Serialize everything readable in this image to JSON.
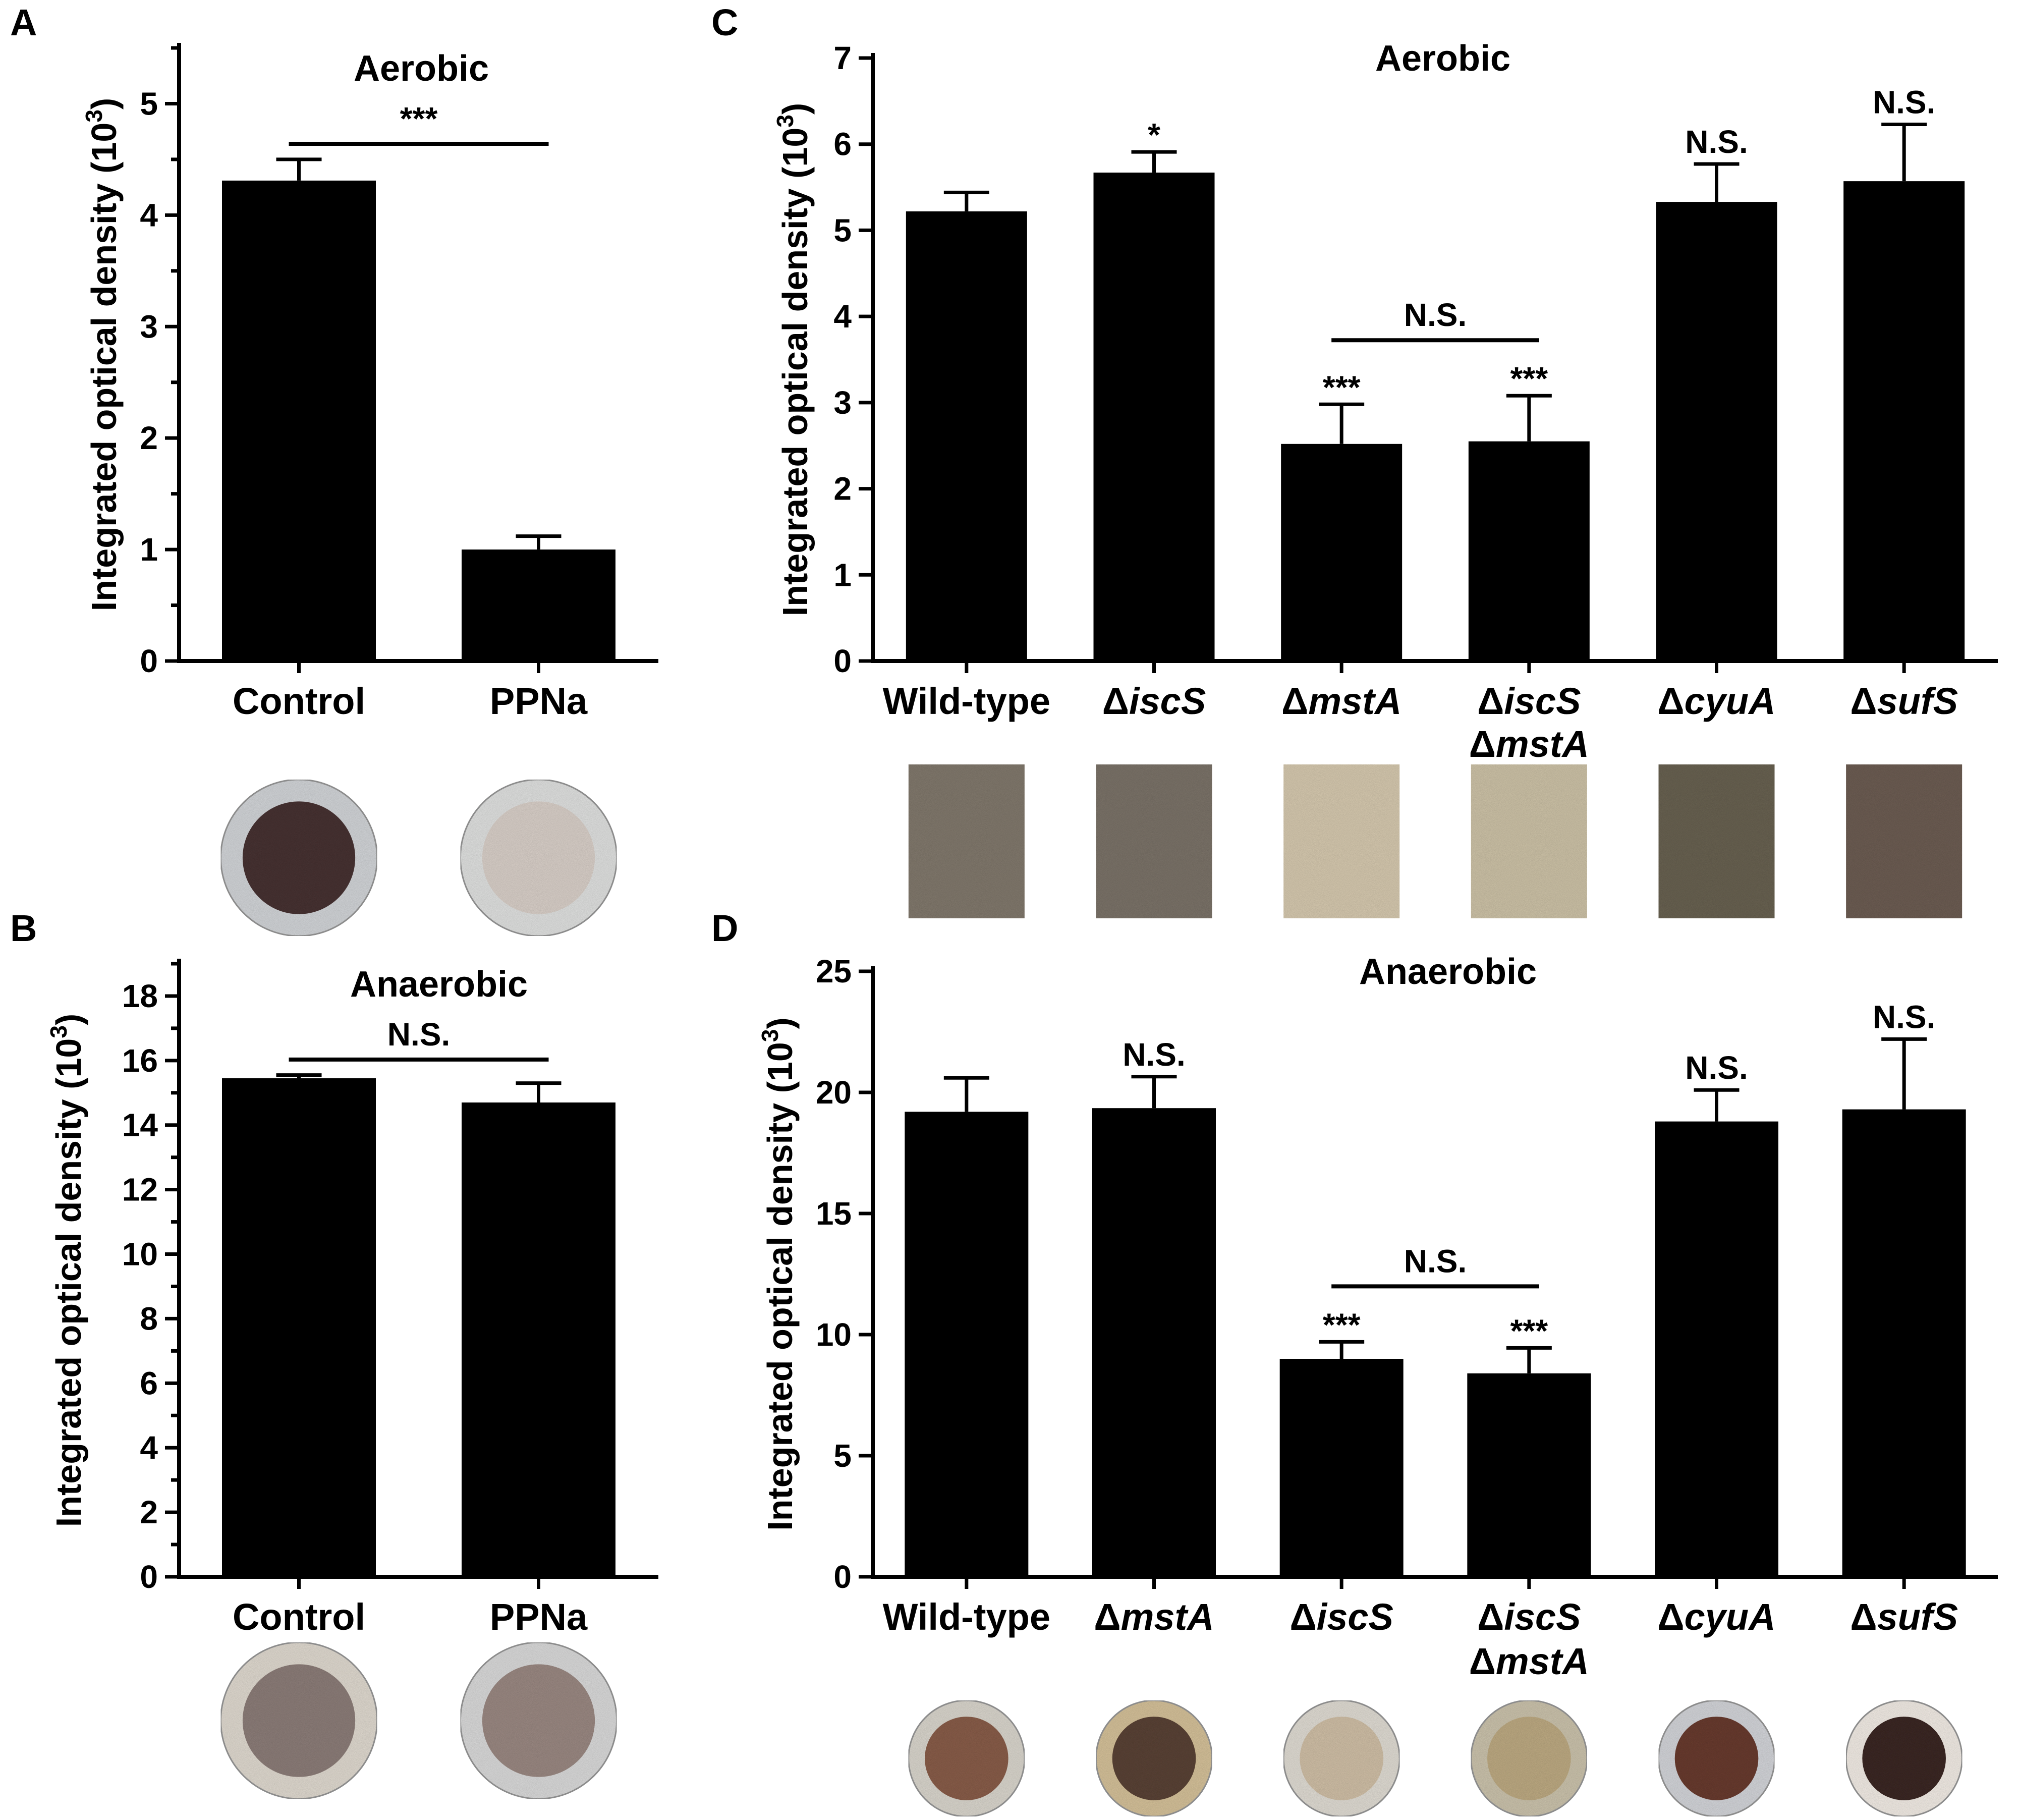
{
  "panels": [
    {
      "label": "A",
      "chart_data": {
        "type": "bar",
        "title": "Aerobic",
        "ylabel": "Integrated optical density (10^3)",
        "ylim": [
          0,
          5.5
        ],
        "yticks": [
          0,
          1,
          2,
          3,
          4,
          5
        ],
        "minor_ticks": true,
        "categories": [
          [
            "Control"
          ],
          [
            "PPNa"
          ]
        ],
        "values": [
          4.31,
          1.0
        ],
        "errors": [
          0.19,
          0.12
        ],
        "bar_annotations": [
          "",
          ""
        ],
        "brackets": [
          {
            "from": 0,
            "to": 1,
            "label": "***"
          }
        ]
      },
      "thumbnails": [
        {
          "shape": "circle",
          "outer": "#d4d7da",
          "inner": "#4a3434"
        },
        {
          "shape": "circle",
          "outer": "#e2e3e2",
          "inner": "#dbd2cb"
        }
      ]
    },
    {
      "label": "B",
      "chart_data": {
        "type": "bar",
        "title": "Anaerobic",
        "ylabel": "Integrated optical density (10^3)",
        "ylim": [
          0,
          19
        ],
        "yticks": [
          0,
          2,
          4,
          6,
          8,
          10,
          12,
          14,
          16,
          18
        ],
        "minor_ticks": true,
        "categories": [
          [
            "Control"
          ],
          [
            "PPNa"
          ]
        ],
        "values": [
          15.45,
          14.7
        ],
        "errors": [
          0.1,
          0.6
        ],
        "bar_annotations": [
          "",
          ""
        ],
        "brackets": [
          {
            "from": 0,
            "to": 1,
            "label": "N.S."
          }
        ]
      },
      "thumbnails": [
        {
          "shape": "circle",
          "outer": "#e2dcd2",
          "inner": "#8e7f7a"
        },
        {
          "shape": "circle",
          "outer": "#dcdcdc",
          "inner": "#9c8a84"
        }
      ]
    },
    {
      "label": "C",
      "chart_data": {
        "type": "bar",
        "title": "Aerobic",
        "ylabel": "Integrated optical density (10^3)",
        "ylim": [
          0,
          7
        ],
        "yticks": [
          0,
          1,
          2,
          3,
          4,
          5,
          6,
          7
        ],
        "minor_ticks": false,
        "categories": [
          [
            "Wild-type"
          ],
          [
            "ΔiscS"
          ],
          [
            "ΔmstA"
          ],
          [
            "ΔiscS",
            "ΔmstA"
          ],
          [
            "ΔcyuA"
          ],
          [
            "ΔsufS"
          ]
        ],
        "values": [
          5.22,
          5.67,
          2.52,
          2.55,
          5.33,
          5.57
        ],
        "errors": [
          0.22,
          0.24,
          0.46,
          0.53,
          0.44,
          0.66
        ],
        "bar_annotations": [
          "",
          "*",
          "***",
          "***",
          "N.S.",
          "N.S."
        ],
        "brackets": [
          {
            "from": 2,
            "to": 3,
            "label": "N.S."
          }
        ]
      },
      "thumbnails": [
        {
          "shape": "square",
          "fill": "#837a6e"
        },
        {
          "shape": "square",
          "fill": "#7d756a"
        },
        {
          "shape": "square",
          "fill": "#d8cbb1"
        },
        {
          "shape": "square",
          "fill": "#cfc4a9"
        },
        {
          "shape": "square",
          "fill": "#6b6353"
        },
        {
          "shape": "square",
          "fill": "#6e5e55"
        }
      ]
    },
    {
      "label": "D",
      "chart_data": {
        "type": "bar",
        "title": "Anaerobic",
        "ylabel": "Integrated optical density (10^3)",
        "ylim": [
          0,
          25
        ],
        "yticks": [
          0,
          5,
          10,
          15,
          20,
          25
        ],
        "minor_ticks": false,
        "categories": [
          [
            "Wild-type"
          ],
          [
            "ΔmstA"
          ],
          [
            "ΔiscS"
          ],
          [
            "ΔiscS",
            "ΔmstA"
          ],
          [
            "ΔcyuA"
          ],
          [
            "ΔsufS"
          ]
        ],
        "values": [
          19.2,
          19.35,
          9.0,
          8.4,
          18.8,
          19.3
        ],
        "errors": [
          1.4,
          1.3,
          0.7,
          1.05,
          1.3,
          2.9
        ],
        "bar_annotations": [
          "",
          "N.S.",
          "***",
          "***",
          "N.S.",
          "N.S."
        ],
        "brackets": [
          {
            "from": 2,
            "to": 3,
            "label": "N.S."
          }
        ]
      },
      "thumbnails": [
        {
          "shape": "circle",
          "outer": "#dcd8cf",
          "inner": "#8a5e4c"
        },
        {
          "shape": "circle",
          "outer": "#d7c39b",
          "inner": "#5c4537"
        },
        {
          "shape": "circle",
          "outer": "#e2ded5",
          "inner": "#d2c1a8"
        },
        {
          "shape": "circle",
          "outer": "#cdc5ae",
          "inner": "#bfac84"
        },
        {
          "shape": "circle",
          "outer": "#d5d7db",
          "inner": "#6a3c32"
        },
        {
          "shape": "circle",
          "outer": "#f4eee7",
          "inner": "#3c2a26"
        }
      ]
    }
  ]
}
